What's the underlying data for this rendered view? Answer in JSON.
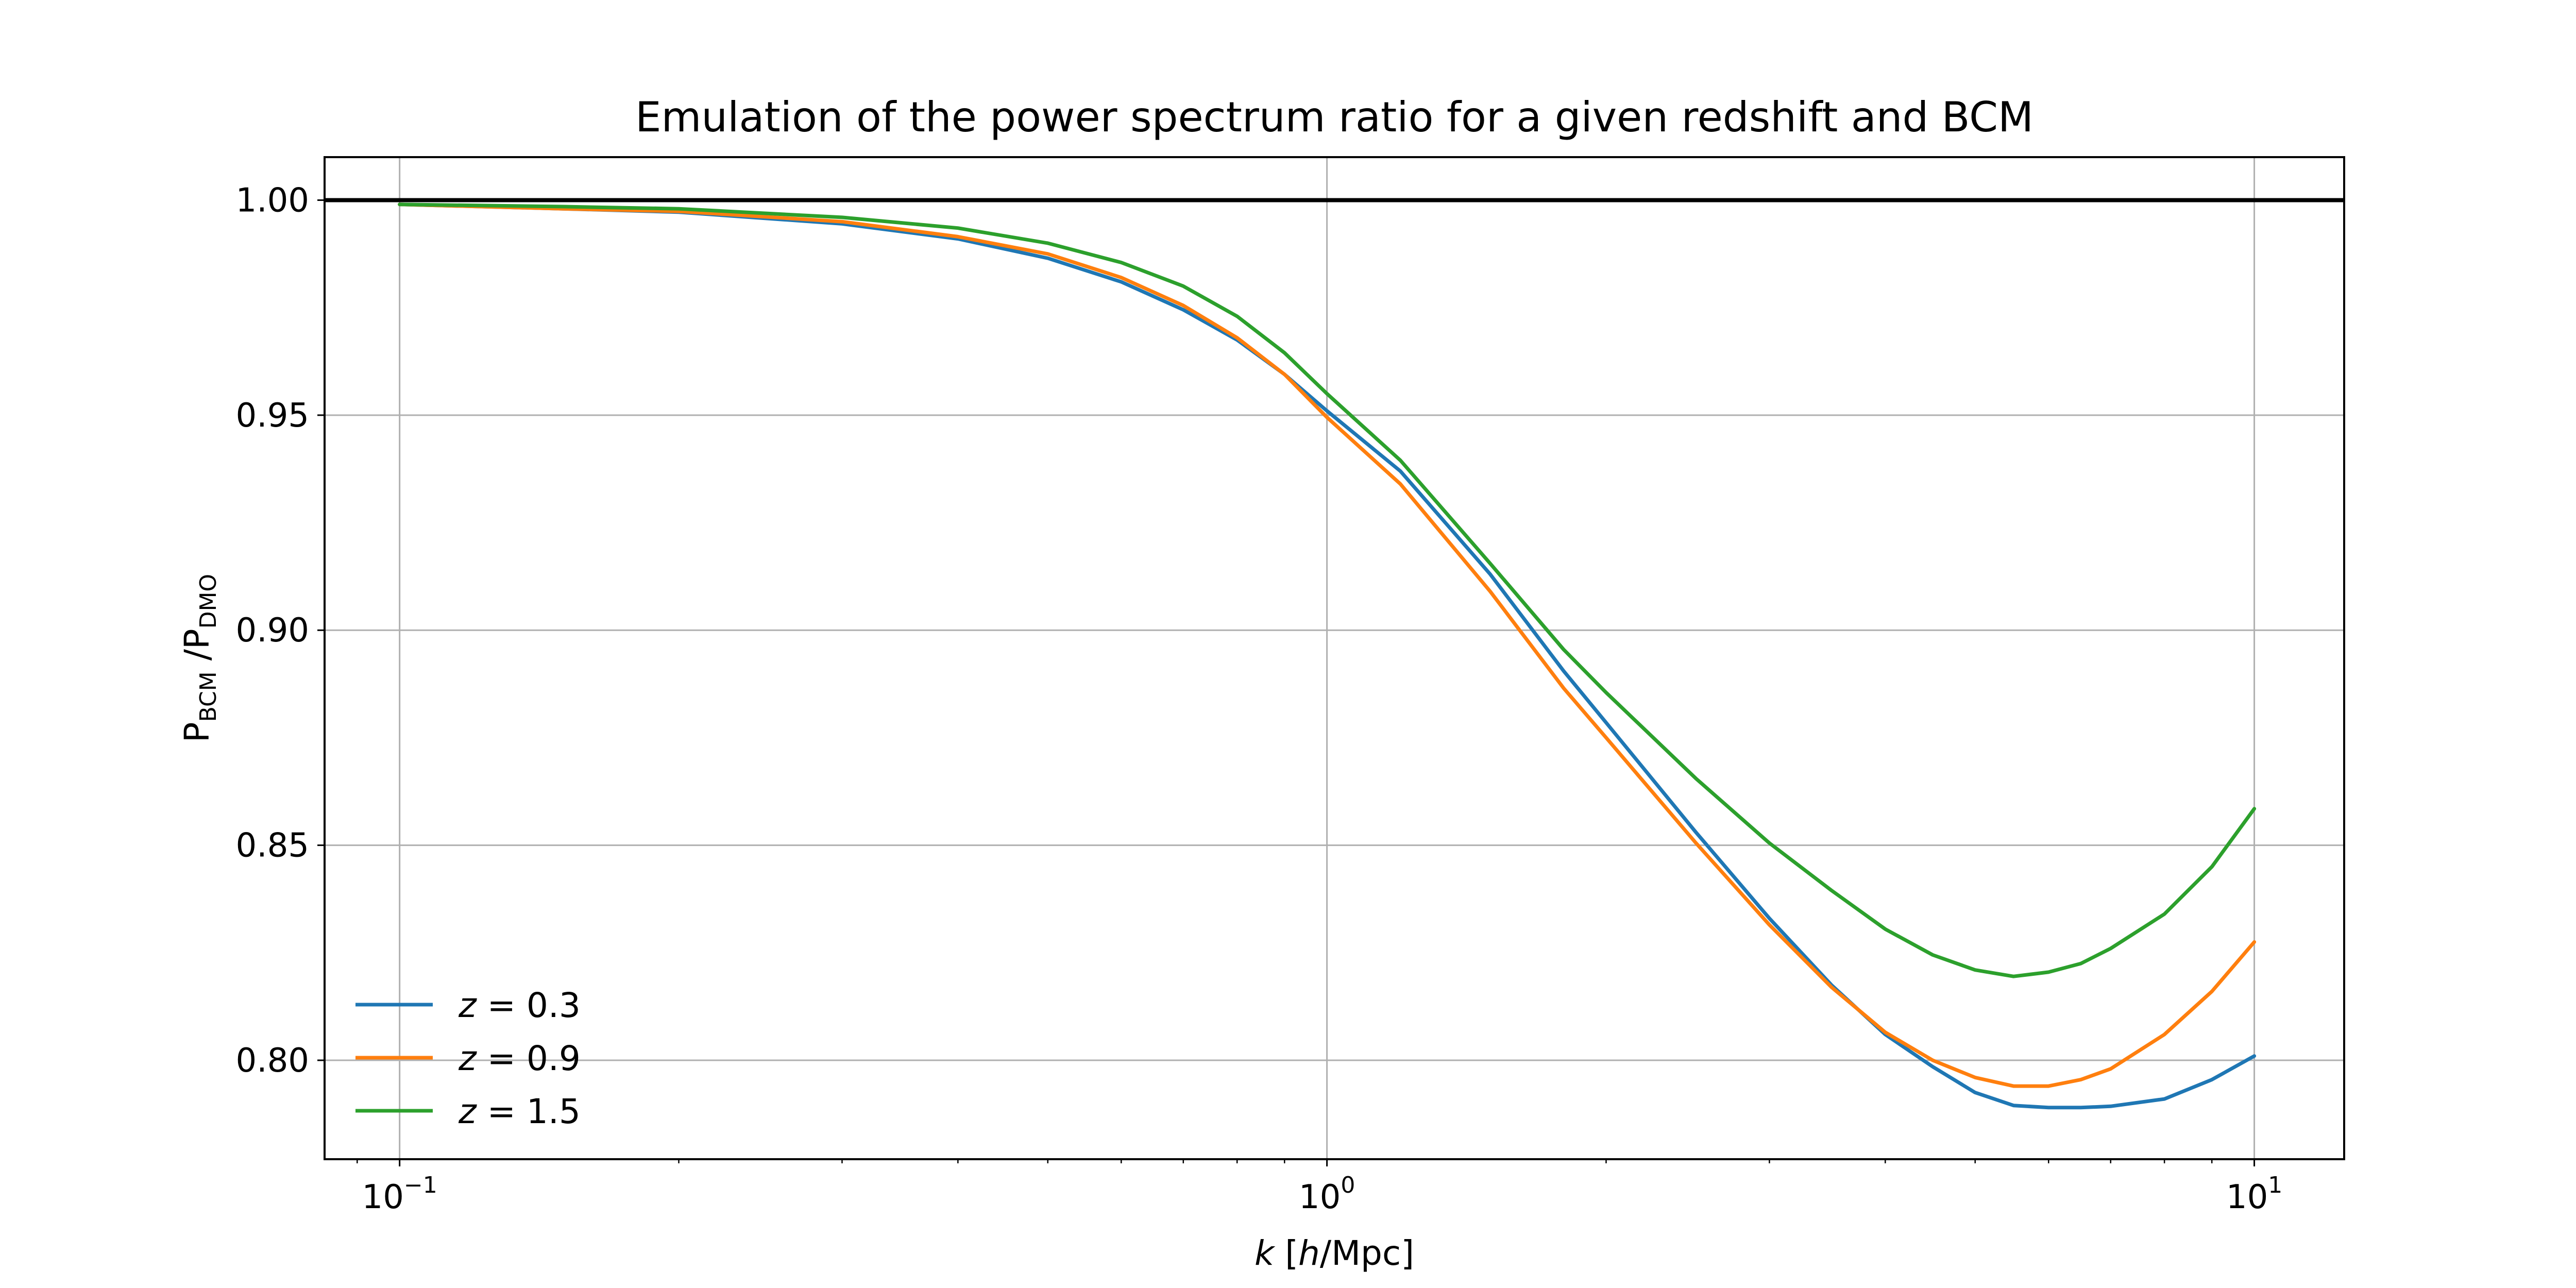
{
  "chart_data": {
    "type": "line",
    "title": "Emulation of the power spectrum ratio for a given redshift and BCM",
    "xlabel": {
      "var": "k",
      "open": " [",
      "h": "h",
      "unit": "/Mpc]"
    },
    "ylabel": {
      "p1": "P",
      "sub1": "BCM",
      "slash": " /P",
      "sub2": "DMO"
    },
    "xscale": "log",
    "xlim": [
      0.083,
      12.5
    ],
    "ylim": [
      0.777,
      1.01
    ],
    "grid": true,
    "xticks": [
      {
        "value": 0.1,
        "base": "10",
        "exp": "−1"
      },
      {
        "value": 1,
        "base": "10",
        "exp": "0"
      },
      {
        "value": 10,
        "base": "10",
        "exp": "1"
      }
    ],
    "yticks": [
      {
        "value": 1.0,
        "label": "1.00"
      },
      {
        "value": 0.95,
        "label": "0.95"
      },
      {
        "value": 0.9,
        "label": "0.90"
      },
      {
        "value": 0.85,
        "label": "0.85"
      },
      {
        "value": 0.8,
        "label": "0.80"
      }
    ],
    "reference_line": {
      "y": 1.0,
      "color": "#000000"
    },
    "legend": {
      "position": "lower-left"
    },
    "series": [
      {
        "name": "z = 0.3",
        "name_var": "z",
        "name_value": "= 0.3",
        "color": "#1f77b4",
        "x": [
          0.1,
          0.15,
          0.2,
          0.3,
          0.4,
          0.5,
          0.6,
          0.7,
          0.8,
          0.9,
          1.0,
          1.2,
          1.5,
          1.8,
          2.0,
          2.5,
          3.0,
          3.5,
          4.0,
          4.5,
          5.0,
          5.5,
          6.0,
          6.5,
          7.0,
          8.0,
          9.0,
          10.0
        ],
        "y": [
          0.999,
          0.998,
          0.9972,
          0.9945,
          0.991,
          0.9865,
          0.981,
          0.9745,
          0.9675,
          0.9595,
          0.951,
          0.937,
          0.913,
          0.8905,
          0.8785,
          0.853,
          0.833,
          0.8175,
          0.806,
          0.7985,
          0.7925,
          0.7895,
          0.789,
          0.789,
          0.7893,
          0.791,
          0.7955,
          0.801
        ]
      },
      {
        "name": "z = 0.9",
        "name_var": "z",
        "name_value": "= 0.9",
        "color": "#ff7f0e",
        "x": [
          0.1,
          0.15,
          0.2,
          0.3,
          0.4,
          0.5,
          0.6,
          0.7,
          0.8,
          0.9,
          1.0,
          1.2,
          1.5,
          1.8,
          2.0,
          2.5,
          3.0,
          3.5,
          4.0,
          4.5,
          5.0,
          5.5,
          6.0,
          6.5,
          7.0,
          8.0,
          9.0,
          10.0
        ],
        "y": [
          0.999,
          0.998,
          0.9974,
          0.995,
          0.9915,
          0.9875,
          0.982,
          0.9755,
          0.968,
          0.9595,
          0.9495,
          0.934,
          0.909,
          0.8865,
          0.875,
          0.8505,
          0.8315,
          0.817,
          0.8065,
          0.8,
          0.796,
          0.794,
          0.794,
          0.7955,
          0.798,
          0.806,
          0.816,
          0.8275
        ]
      },
      {
        "name": "z = 1.5",
        "name_var": "z",
        "name_value": "= 1.5",
        "color": "#2ca02c",
        "x": [
          0.1,
          0.15,
          0.2,
          0.3,
          0.4,
          0.5,
          0.6,
          0.7,
          0.8,
          0.9,
          1.0,
          1.2,
          1.5,
          1.8,
          2.0,
          2.5,
          3.0,
          3.5,
          4.0,
          4.5,
          5.0,
          5.5,
          6.0,
          6.5,
          7.0,
          8.0,
          9.0,
          10.0
        ],
        "y": [
          0.999,
          0.9985,
          0.998,
          0.996,
          0.9935,
          0.99,
          0.9855,
          0.98,
          0.973,
          0.9645,
          0.955,
          0.9395,
          0.9155,
          0.8955,
          0.8855,
          0.8655,
          0.8505,
          0.8395,
          0.8305,
          0.8245,
          0.821,
          0.8195,
          0.8205,
          0.8225,
          0.826,
          0.834,
          0.845,
          0.8585
        ]
      }
    ]
  }
}
